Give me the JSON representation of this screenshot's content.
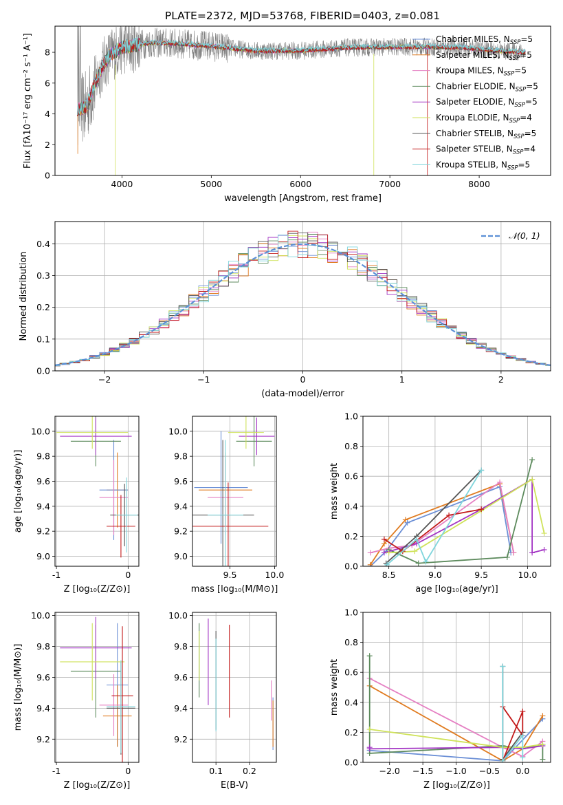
{
  "suptitle": "PLATE=2372, MJD=53768, FIBERID=0403, z=0.081",
  "colors": {
    "grid": "#b0b0b0",
    "observed": "#808080",
    "gauss": "#5b8fd6",
    "models": [
      "#6b8fd6",
      "#e07b20",
      "#e580c3",
      "#5c8a5c",
      "#a335c4",
      "#cfe25a",
      "#555555",
      "#c31a1a",
      "#7fd5dc"
    ]
  },
  "chart_data": [
    {
      "id": "spectrum",
      "type": "line",
      "xlabel": "wavelength [Angstrom, rest frame]",
      "ylabel": "Flux [fλ10⁻¹⁷ erg cm⁻² s⁻¹ A⁻¹]",
      "xlim": [
        3250,
        8800
      ],
      "ylim": [
        0,
        9.7
      ],
      "xticks": [
        4000,
        5000,
        6000,
        7000,
        8000
      ],
      "yticks": [
        0,
        2,
        4,
        6,
        8
      ],
      "legend_position": "upper-right",
      "continuum": [
        [
          3500,
          4.3
        ],
        [
          3600,
          4.4
        ],
        [
          3700,
          6.0
        ],
        [
          3800,
          7.3
        ],
        [
          3880,
          7.9
        ],
        [
          4000,
          8.3
        ],
        [
          4100,
          8.4
        ],
        [
          4300,
          8.6
        ],
        [
          4500,
          8.6
        ],
        [
          5000,
          8.4
        ],
        [
          5500,
          8.1
        ],
        [
          6000,
          8.1
        ],
        [
          6500,
          8.3
        ],
        [
          7000,
          8.35
        ],
        [
          7400,
          8.35
        ],
        [
          7800,
          8.3
        ],
        [
          8200,
          8.1
        ],
        [
          8500,
          8.0
        ]
      ],
      "series": [
        {
          "name": "Chabrier MILES, NSSP=5",
          "label_main": "Chabrier MILES, N",
          "label_sub": "SSP",
          "label_tail": "=5"
        },
        {
          "name": "Salpeter MILES, NSSP=5",
          "label_main": "Salpeter MILES, N",
          "label_sub": "SSP",
          "label_tail": "=5"
        },
        {
          "name": "Kroupa MILES, NSSP=5",
          "label_main": "Kroupa MILES, N",
          "label_sub": "SSP",
          "label_tail": "=5"
        },
        {
          "name": "Chabrier ELODIE, NSSP=5",
          "label_main": "Chabrier ELODIE, N",
          "label_sub": "SSP",
          "label_tail": "=5"
        },
        {
          "name": "Salpeter ELODIE, NSSP=5",
          "label_main": "Salpeter ELODIE, N",
          "label_sub": "SSP",
          "label_tail": "=5"
        },
        {
          "name": "Kroupa ELODIE, NSSP=4",
          "label_main": "Kroupa ELODIE, N",
          "label_sub": "SSP",
          "label_tail": "=4"
        },
        {
          "name": "Chabrier STELIB, NSSP=5",
          "label_main": "Chabrier STELIB, N",
          "label_sub": "SSP",
          "label_tail": "=5"
        },
        {
          "name": "Salpeter STELIB, NSSP=4",
          "label_main": "Salpeter STELIB, N",
          "label_sub": "SSP",
          "label_tail": "=4"
        },
        {
          "name": "Kroupa STELIB, NSSP=5",
          "label_main": "Kroupa STELIB, N",
          "label_sub": "SSP",
          "label_tail": "=5"
        }
      ]
    },
    {
      "id": "residuals",
      "type": "line",
      "xlabel": "(data-model)/error",
      "ylabel": "Normed distribution",
      "xlim": [
        -2.5,
        2.5
      ],
      "ylim": [
        0,
        0.47
      ],
      "xticks": [
        -2,
        -1,
        0,
        1,
        2
      ],
      "yticks": [
        0.0,
        0.1,
        0.2,
        0.3,
        0.4
      ],
      "legend": "𝒩(0, 1)",
      "legend_position": "upper-right",
      "bin_width": 0.1
    },
    {
      "id": "age-vs-Z",
      "type": "scatter",
      "xlabel": "Z [log₁₀(Z/Z⊙)]",
      "ylabel": "age  [log₁₀(age/yr)]",
      "xlim": [
        -1.02,
        0.15
      ],
      "ylim": [
        8.92,
        10.12
      ],
      "xticks": [
        -1,
        0
      ],
      "yticks": [
        9.0,
        9.2,
        9.4,
        9.6,
        9.8,
        10.0
      ],
      "points": [
        {
          "c": 1,
          "x": -0.15,
          "y": 9.53,
          "xe": 0.15,
          "ye": 0.3
        },
        {
          "c": 0,
          "x": -0.2,
          "y": 9.53,
          "xe": 0.2,
          "ye": 0.4
        },
        {
          "c": 2,
          "x": -0.2,
          "y": 9.47,
          "xe": 0.2,
          "ye": 0.3
        },
        {
          "c": 3,
          "x": -0.45,
          "y": 9.92,
          "xe": 0.35,
          "ye": 0.2
        },
        {
          "c": 4,
          "x": -0.45,
          "y": 9.96,
          "xe": 0.5,
          "ye": 0.15
        },
        {
          "c": 5,
          "x": -0.5,
          "y": 9.99,
          "xe": 0.5,
          "ye": 0.13
        },
        {
          "c": 6,
          "x": -0.05,
          "y": 9.33,
          "xe": 0.2,
          "ye": 0.25
        },
        {
          "c": 7,
          "x": -0.1,
          "y": 9.24,
          "xe": 0.2,
          "ye": 0.25
        },
        {
          "c": 8,
          "x": -0.02,
          "y": 9.33,
          "xe": 0.15,
          "ye": 0.3
        }
      ]
    },
    {
      "id": "age-vs-mass",
      "type": "scatter",
      "xlabel": "mass [log₁₀(M/M⊙)]",
      "ylabel": "",
      "xlim": [
        9.08,
        10.02
      ],
      "ylim": [
        8.92,
        10.12
      ],
      "xticks": [
        9.5,
        10.0
      ],
      "yticks": [
        9.0,
        9.2,
        9.4,
        9.6,
        9.8,
        10.0
      ],
      "points": [
        {
          "c": 0,
          "x": 9.4,
          "y": 9.55,
          "xe": 0.3,
          "ye": 0.45
        },
        {
          "c": 1,
          "x": 9.45,
          "y": 9.53,
          "xe": 0.3,
          "ye": 0.3
        },
        {
          "c": 2,
          "x": 9.45,
          "y": 9.47,
          "xe": 0.2,
          "ye": 0.3
        },
        {
          "c": 3,
          "x": 9.77,
          "y": 9.92,
          "xe": 0.2,
          "ye": 0.2
        },
        {
          "c": 4,
          "x": 9.8,
          "y": 9.96,
          "xe": 0.2,
          "ye": 0.15
        },
        {
          "c": 5,
          "x": 9.68,
          "y": 9.99,
          "xe": 0.2,
          "ye": 0.13
        },
        {
          "c": 6,
          "x": 9.42,
          "y": 9.33,
          "xe": 0.35,
          "ye": 0.6
        },
        {
          "c": 7,
          "x": 9.48,
          "y": 9.24,
          "xe": 0.45,
          "ye": 0.35
        },
        {
          "c": 8,
          "x": 9.45,
          "y": 9.33,
          "xe": 0.2,
          "ye": 0.6
        }
      ]
    },
    {
      "id": "massweight-vs-age",
      "type": "line",
      "xlabel": "age  [log₁₀(age/yr)]",
      "ylabel": "mass weight",
      "xlim": [
        8.22,
        10.25
      ],
      "ylim": [
        0,
        1.0
      ],
      "xticks": [
        8.5,
        9.0,
        9.5,
        10.0
      ],
      "yticks": [
        0.0,
        0.2,
        0.4,
        0.6,
        0.8,
        1.0
      ],
      "series": [
        {
          "c": 0,
          "x": [
            8.3,
            8.47,
            8.7,
            9.7,
            9.82
          ],
          "y": [
            0.0,
            0.1,
            0.29,
            0.53,
            0.09
          ]
        },
        {
          "c": 1,
          "x": [
            8.3,
            8.45,
            8.68,
            9.7,
            9.85
          ],
          "y": [
            0.01,
            0.15,
            0.31,
            0.55,
            0.09
          ]
        },
        {
          "c": 2,
          "x": [
            8.3,
            8.5,
            8.75,
            9.7,
            9.85
          ],
          "y": [
            0.09,
            0.12,
            0.14,
            0.56,
            0.09
          ]
        },
        {
          "c": 3,
          "x": [
            8.5,
            8.82,
            9.78,
            10.05
          ],
          "y": [
            0.11,
            0.02,
            0.06,
            0.71
          ]
        },
        {
          "c": 4,
          "x": [
            8.45,
            8.8,
            9.5,
            10.05,
            10.05,
            10.18
          ],
          "y": [
            0.09,
            0.15,
            0.38,
            0.58,
            0.09,
            0.11
          ]
        },
        {
          "c": 5,
          "x": [
            8.5,
            8.78,
            9.5,
            10.05,
            10.18
          ],
          "y": [
            0.09,
            0.1,
            0.37,
            0.58,
            0.22
          ]
        },
        {
          "c": 6,
          "x": [
            8.47,
            8.8,
            9.5
          ],
          "y": [
            0.02,
            0.2,
            0.64
          ]
        },
        {
          "c": 7,
          "x": [
            8.45,
            8.65,
            9.15,
            9.5
          ],
          "y": [
            0.18,
            0.1,
            0.34,
            0.38
          ]
        },
        {
          "c": 8,
          "x": [
            8.48,
            8.8,
            8.9,
            9.5
          ],
          "y": [
            0.01,
            0.18,
            0.03,
            0.64
          ]
        }
      ]
    },
    {
      "id": "mass-vs-Z",
      "type": "scatter",
      "xlabel": "Z [log₁₀(Z/Z⊙)]",
      "ylabel": "mass [log₁₀(M/M⊙)]",
      "xlim": [
        -1.02,
        0.15
      ],
      "ylim": [
        9.05,
        10.02
      ],
      "xticks": [
        -1,
        0
      ],
      "yticks": [
        9.2,
        9.4,
        9.6,
        9.8,
        10.0
      ],
      "points": [
        {
          "c": 0,
          "x": -0.15,
          "y": 9.55,
          "xe": 0.15,
          "ye": 0.4
        },
        {
          "c": 1,
          "x": -0.15,
          "y": 9.35,
          "xe": 0.2,
          "ye": 0.2
        },
        {
          "c": 2,
          "x": -0.2,
          "y": 9.42,
          "xe": 0.2,
          "ye": 0.2
        },
        {
          "c": 3,
          "x": -0.45,
          "y": 9.64,
          "xe": 0.35,
          "ye": 0.3
        },
        {
          "c": 4,
          "x": -0.45,
          "y": 9.79,
          "xe": 0.5,
          "ye": 0.2
        },
        {
          "c": 5,
          "x": -0.5,
          "y": 9.7,
          "xe": 0.45,
          "ye": 0.25
        },
        {
          "c": 6,
          "x": -0.1,
          "y": 9.4,
          "xe": 0.2,
          "ye": 0.3
        },
        {
          "c": 7,
          "x": -0.08,
          "y": 9.48,
          "xe": 0.15,
          "ye": 0.45
        },
        {
          "c": 8,
          "x": -0.1,
          "y": 9.41,
          "xe": 0.2,
          "ye": 0.3
        }
      ]
    },
    {
      "id": "mass-vs-EBV",
      "type": "scatter",
      "xlabel": "E(B-V)",
      "ylabel": "",
      "xlim": [
        0.03,
        0.28
      ],
      "ylim": [
        9.05,
        10.02
      ],
      "xticks": [
        0.1,
        0.2
      ],
      "yticks": [
        9.2,
        9.4,
        9.6,
        9.8,
        10.0
      ],
      "points": [
        {
          "c": 0,
          "x": 0.27,
          "y": 9.3,
          "ye": 0.17
        },
        {
          "c": 1,
          "x": 0.27,
          "y": 9.3,
          "ye": 0.15
        },
        {
          "c": 2,
          "x": 0.265,
          "y": 9.45,
          "ye": 0.13
        },
        {
          "c": 3,
          "x": 0.05,
          "y": 9.71,
          "ye": 0.24
        },
        {
          "c": 4,
          "x": 0.077,
          "y": 9.7,
          "ye": 0.28
        },
        {
          "c": 5,
          "x": 0.05,
          "y": 9.74,
          "ye": 0.16
        },
        {
          "c": 6,
          "x": 0.1,
          "y": 9.58,
          "ye": 0.32
        },
        {
          "c": 7,
          "x": 0.14,
          "y": 9.64,
          "ye": 0.3
        },
        {
          "c": 8,
          "x": 0.1,
          "y": 9.55,
          "ye": 0.3
        }
      ]
    },
    {
      "id": "massweight-vs-Z",
      "type": "line",
      "xlabel": "Z [log₁₀(Z/Z⊙)]",
      "ylabel": "mass weight",
      "xlim": [
        -2.4,
        0.42
      ],
      "ylim": [
        0,
        1.0
      ],
      "xticks": [
        -2.0,
        -1.5,
        -1.0,
        -0.5,
        0.0
      ],
      "yticks": [
        0.0,
        0.2,
        0.4,
        0.6,
        0.8,
        1.0
      ],
      "xticklabels": [
        "−2.0",
        "−1.5",
        "−1.0",
        "−0.5",
        "0.0"
      ],
      "series": [
        {
          "c": 0,
          "x": [
            -2.3,
            -0.3,
            0.3
          ],
          "y": [
            0.08,
            0.01,
            0.29
          ]
        },
        {
          "c": 1,
          "x": [
            -2.3,
            -0.3,
            0.0,
            0.3
          ],
          "y": [
            0.51,
            0.01,
            0.09,
            0.31
          ]
        },
        {
          "c": 2,
          "x": [
            -2.3,
            -0.3,
            0.0,
            0.3
          ],
          "y": [
            0.56,
            0.1,
            0.04,
            0.14
          ]
        },
        {
          "c": 3,
          "x": [
            -2.3,
            -2.3,
            -0.3,
            0.0,
            0.3,
            0.3
          ],
          "y": [
            0.71,
            0.06,
            0.11,
            0.09,
            0.12,
            0.02
          ]
        },
        {
          "c": 4,
          "x": [
            -2.3,
            -2.3,
            -0.3,
            0.0,
            0.3
          ],
          "y": [
            0.1,
            0.09,
            0.1,
            0.09,
            0.11
          ]
        },
        {
          "c": 5,
          "x": [
            -2.3,
            -0.3,
            0.0,
            0.3
          ],
          "y": [
            0.22,
            0.1,
            0.1,
            0.12
          ]
        },
        {
          "c": 6,
          "x": [
            -0.3,
            -0.3,
            0.0
          ],
          "y": [
            0.64,
            0.02,
            0.2
          ]
        },
        {
          "c": 7,
          "x": [
            -0.3,
            0.0,
            0.0,
            -0.3
          ],
          "y": [
            0.37,
            0.18,
            0.34,
            0.01
          ]
        },
        {
          "c": 8,
          "x": [
            -0.3,
            -0.3,
            0.0,
            0.0
          ],
          "y": [
            0.64,
            0.01,
            0.18,
            0.03
          ]
        }
      ]
    }
  ]
}
